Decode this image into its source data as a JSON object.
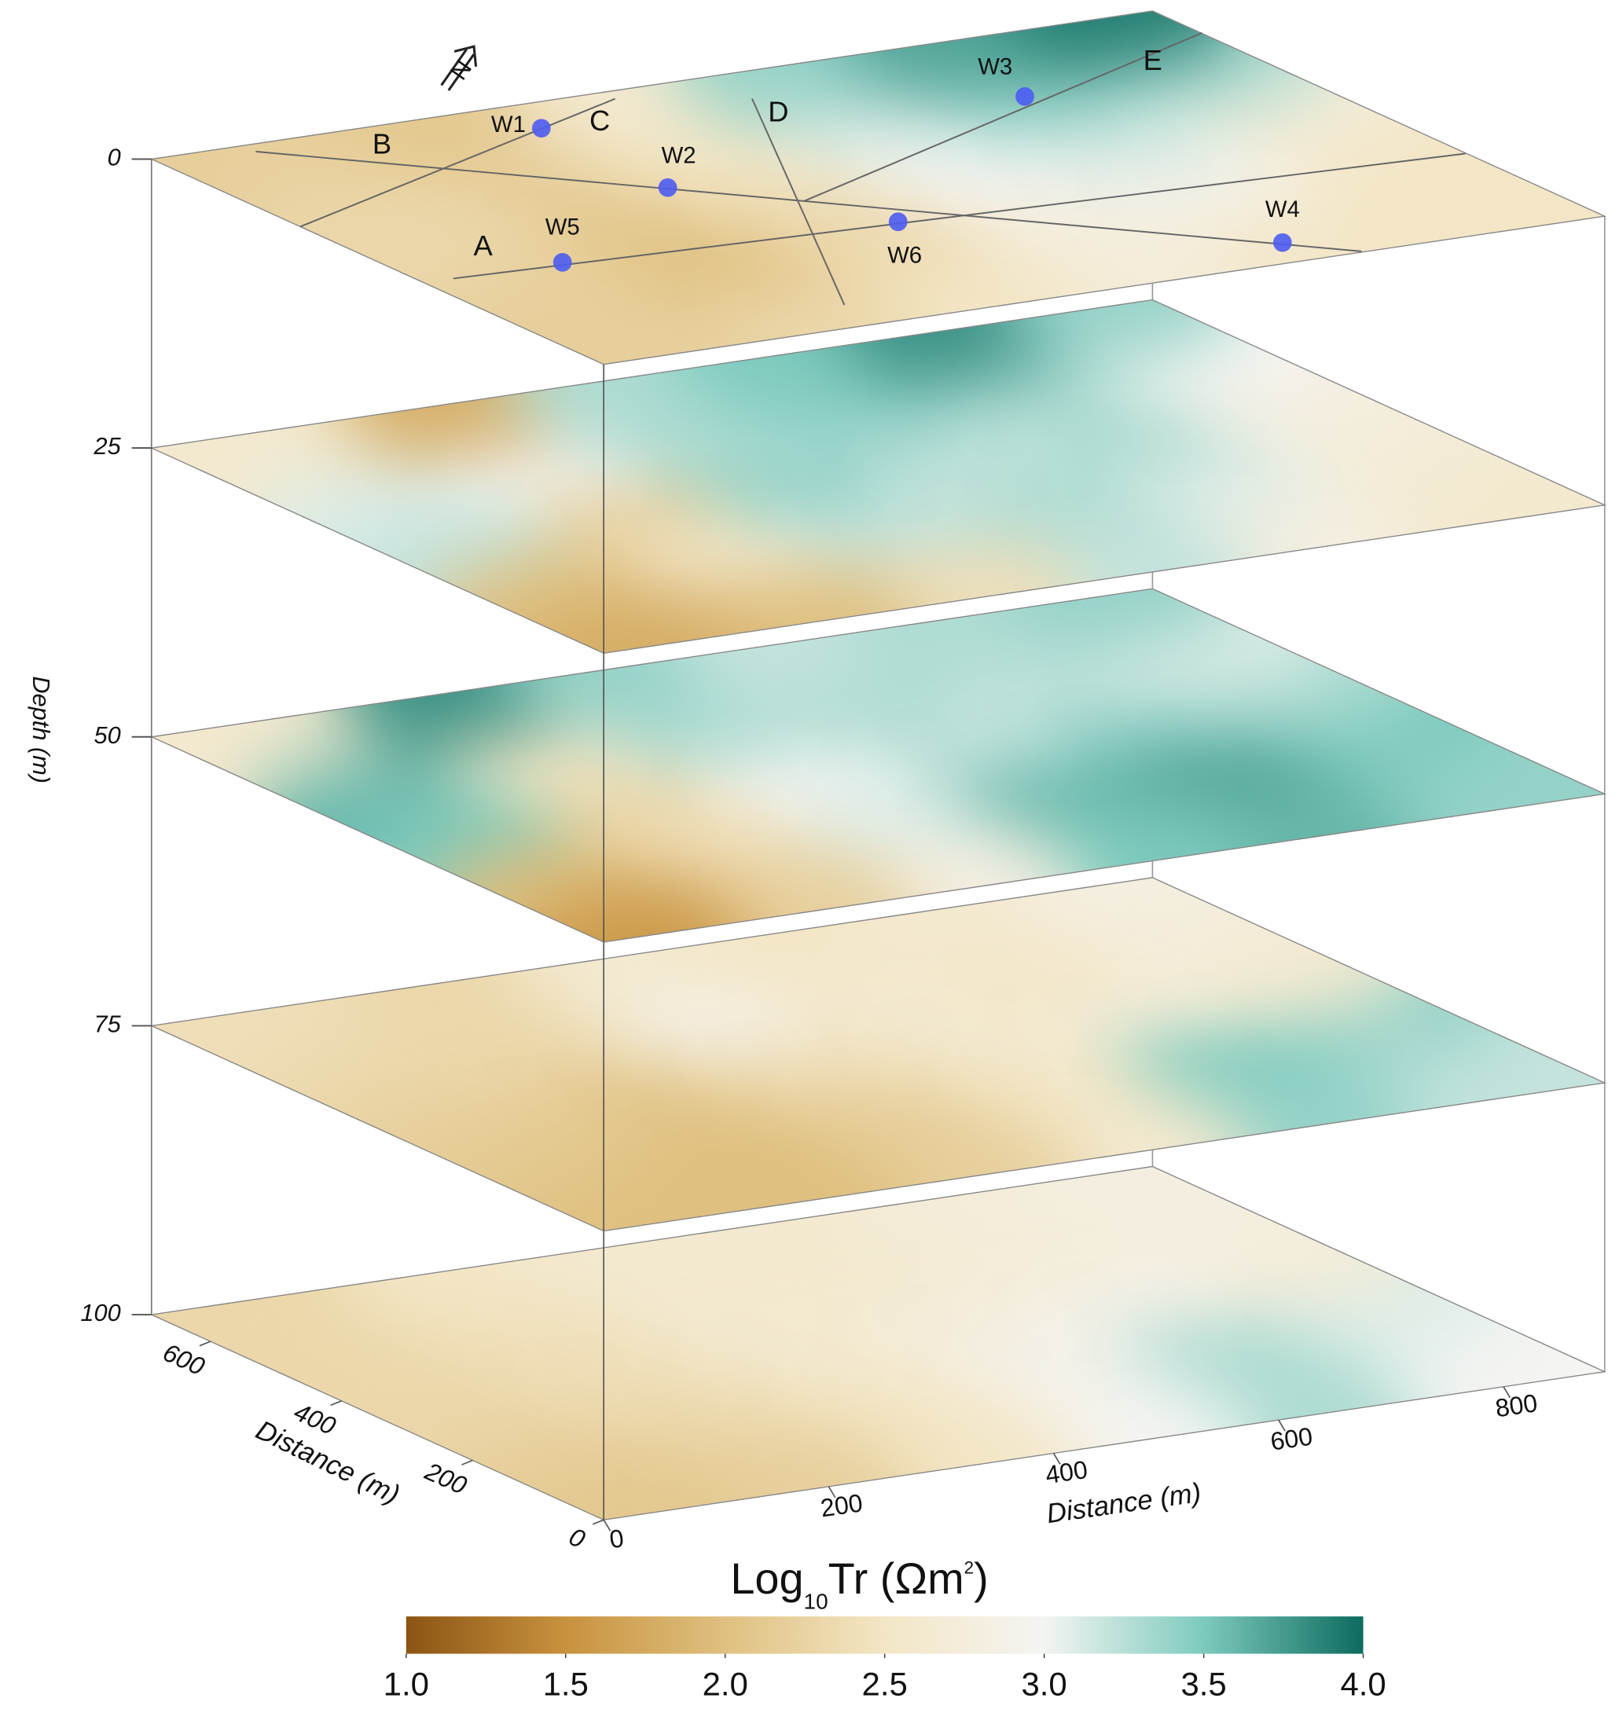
{
  "chart_data": {
    "type": "slices3d",
    "xlabel": "Distance (m)",
    "ylabel": "Distance (m)",
    "zlabel": "Depth (m)",
    "north": "N",
    "xlim": [
      0,
      890
    ],
    "ylim": [
      0,
      690
    ],
    "zlim": [
      0,
      100
    ],
    "xticks": [
      0,
      200,
      400,
      600,
      800
    ],
    "yticks": [
      0,
      200,
      400,
      600
    ],
    "zticks": [
      0,
      25,
      50,
      75,
      100
    ],
    "slices": [
      {
        "depth": 0,
        "values": [
          [
            2.2,
            2.3,
            2.5,
            2.7,
            2.5,
            2.5
          ],
          [
            2.2,
            2.0,
            2.3,
            2.8,
            2.9,
            2.5
          ],
          [
            2.3,
            2.1,
            2.4,
            3.0,
            3.1,
            2.7
          ],
          [
            2.3,
            2.2,
            2.5,
            3.1,
            3.4,
            3.3
          ],
          [
            2.2,
            2.1,
            2.6,
            3.4,
            3.7,
            3.9
          ]
        ]
      },
      {
        "depth": 25,
        "values": [
          [
            1.8,
            2.0,
            2.4,
            3.2,
            2.8,
            2.6
          ],
          [
            2.0,
            2.6,
            3.2,
            3.3,
            3.1,
            2.7
          ],
          [
            3.2,
            2.2,
            3.4,
            3.2,
            3.3,
            2.8
          ],
          [
            3.1,
            3.0,
            3.3,
            3.4,
            3.3,
            3.0
          ],
          [
            2.6,
            1.8,
            3.3,
            3.5,
            3.8,
            3.4
          ]
        ]
      },
      {
        "depth": 50,
        "values": [
          [
            1.6,
            2.2,
            2.8,
            3.5,
            3.6,
            3.4
          ],
          [
            2.0,
            2.4,
            3.1,
            3.6,
            3.7,
            3.5
          ],
          [
            3.5,
            2.3,
            3.0,
            3.2,
            3.4,
            3.3
          ],
          [
            3.6,
            2.5,
            3.3,
            3.3,
            3.2,
            3.1
          ],
          [
            2.6,
            3.8,
            3.4,
            3.2,
            3.3,
            3.4
          ]
        ]
      },
      {
        "depth": 75,
        "values": [
          [
            2.0,
            2.0,
            2.2,
            2.6,
            3.4,
            3.2
          ],
          [
            2.1,
            2.0,
            2.2,
            2.5,
            3.5,
            3.4
          ],
          [
            2.2,
            2.1,
            2.4,
            2.6,
            2.7,
            2.6
          ],
          [
            2.3,
            2.3,
            2.9,
            2.6,
            2.5,
            2.7
          ],
          [
            2.4,
            2.3,
            2.6,
            2.5,
            2.6,
            2.8
          ]
        ]
      },
      {
        "depth": 100,
        "values": [
          [
            2.1,
            2.2,
            2.5,
            3.0,
            3.3,
            3.0
          ],
          [
            2.2,
            2.3,
            2.5,
            2.9,
            3.3,
            3.1
          ],
          [
            2.3,
            2.4,
            2.6,
            2.8,
            2.9,
            2.7
          ],
          [
            2.3,
            2.4,
            2.6,
            2.6,
            2.7,
            2.8
          ],
          [
            2.3,
            2.5,
            2.6,
            2.6,
            2.7,
            2.8
          ]
        ]
      }
    ],
    "wells": [
      {
        "name": "W1",
        "x": 307,
        "y": 622
      },
      {
        "name": "W2",
        "x": 304,
        "y": 424
      },
      {
        "name": "W3",
        "x": 678,
        "y": 521
      },
      {
        "name": "W4",
        "x": 635,
        "y": 54
      },
      {
        "name": "W5",
        "x": 123,
        "y": 274
      },
      {
        "name": "W6",
        "x": 408,
        "y": 251
      }
    ],
    "well_color": "#4d5cf2",
    "profiles": [
      {
        "name": "A",
        "x": [
          26,
          889
        ],
        "y": [
          274,
          211
        ]
      },
      {
        "name": "B",
        "x": [
          81,
          675
        ],
        "y": [
          670,
          2
        ]
      },
      {
        "name": "C",
        "x": [
          0,
          400
        ],
        "y": [
          463,
          669
        ]
      },
      {
        "name": "D",
        "x": [
          492,
          249
        ],
        "y": [
          618,
          60
        ]
      },
      {
        "name": "E",
        "x": [
          376,
          891
        ],
        "y": [
          339,
          616
        ]
      }
    ],
    "colorbar": {
      "title": "Log",
      "title_sub": "10",
      "title_main": "Tr (Ωm",
      "title_sup": "2",
      "title_end": ")",
      "lim": [
        1,
        4
      ],
      "colors": [
        "#8c5414",
        "#c8923e",
        "#dfc080",
        "#f3e6c6",
        "#f4f4f2",
        "#7dcabd",
        "#0d6b5f"
      ],
      "ticks": [
        {
          "value": 1,
          "label": "1.0"
        },
        {
          "value": 1.5,
          "label": "1.5"
        },
        {
          "value": 2,
          "label": "2.0"
        },
        {
          "value": 2.5,
          "label": "2.5"
        },
        {
          "value": 3,
          "label": "3.0"
        },
        {
          "value": 3.5,
          "label": "3.5"
        },
        {
          "value": 4,
          "label": "4.0"
        }
      ]
    }
  }
}
